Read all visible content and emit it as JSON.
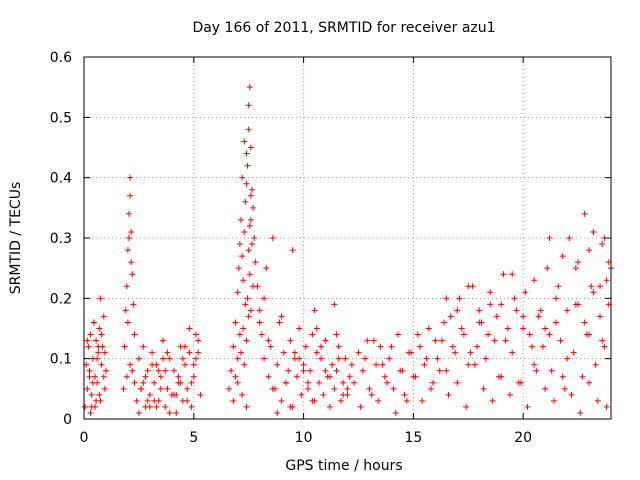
{
  "chart_data": {
    "type": "scatter",
    "title": "Day 166 of 2011, SRMTID for receiver azu1",
    "xlabel": "GPS time / hours",
    "ylabel": "SRMTID / TECUs",
    "xlim": [
      0,
      24
    ],
    "ylim": [
      0,
      0.6
    ],
    "xticks": [
      0,
      5,
      10,
      15,
      20
    ],
    "yticks": [
      0,
      0.1,
      0.2,
      0.3,
      0.4,
      0.5,
      0.6
    ],
    "xtick_labels": [
      "0",
      "5",
      "10",
      "15",
      "20"
    ],
    "ytick_labels": [
      "0",
      "0.1",
      "0.2",
      "0.3",
      "0.4",
      "0.5",
      "0.6"
    ],
    "grid": true,
    "marker": "+",
    "marker_color": "#ff0000",
    "series": [
      {
        "name": "SRMTID",
        "x": [
          0.05,
          0.1,
          0.15,
          0.2,
          0.25,
          0.3,
          0.35,
          0.4,
          0.45,
          0.5,
          0.55,
          0.6,
          0.65,
          0.7,
          0.75,
          0.8,
          0.85,
          0.9,
          0.95,
          1.0,
          0.3,
          0.4,
          0.5,
          0.6,
          0.7,
          0.8,
          0.9,
          0.45,
          0.55,
          0.65,
          0.95,
          0.15,
          0.25,
          0.35,
          0.75,
          1.8,
          1.85,
          1.9,
          1.95,
          2.0,
          2.05,
          2.1,
          2.15,
          2.2,
          2.25,
          2.3,
          2.1,
          2.05,
          2.15,
          2.0,
          2.1,
          2.2,
          1.95,
          2.3,
          2.4,
          2.5,
          2.6,
          2.7,
          2.8,
          2.9,
          3.0,
          3.1,
          3.2,
          3.3,
          3.4,
          3.5,
          3.6,
          3.7,
          3.8,
          3.9,
          4.0,
          4.1,
          4.2,
          4.3,
          4.4,
          4.5,
          4.6,
          4.7,
          4.8,
          4.9,
          5.0,
          5.1,
          5.2,
          5.3,
          2.5,
          2.7,
          2.9,
          3.1,
          3.3,
          3.5,
          3.7,
          3.9,
          4.1,
          4.3,
          4.5,
          4.7,
          4.9,
          5.1,
          2.6,
          3.0,
          3.4,
          3.8,
          4.2,
          4.6,
          5.0,
          2.8,
          3.2,
          3.6,
          4.4,
          4.8,
          5.2,
          6.6,
          6.7,
          6.8,
          6.9,
          7.0,
          7.05,
          7.1,
          7.15,
          7.2,
          7.25,
          7.3,
          7.35,
          7.4,
          7.45,
          7.5,
          7.55,
          7.6,
          7.65,
          7.7,
          7.75,
          7.8,
          7.2,
          7.3,
          7.4,
          7.5,
          7.6,
          7.5,
          7.55,
          7.45,
          7.6,
          7.7,
          7.0,
          7.1,
          7.3,
          7.4,
          7.5,
          7.6,
          7.55,
          7.65,
          7.35,
          7.25,
          7.15,
          6.9,
          6.8,
          7.0,
          7.2,
          7.4,
          7.9,
          8.0,
          8.1,
          8.2,
          8.3,
          8.4,
          8.5,
          8.6,
          8.7,
          8.8,
          8.9,
          9.0,
          9.1,
          9.2,
          9.3,
          9.4,
          9.5,
          9.6,
          9.7,
          9.8,
          9.9,
          10.0,
          10.1,
          10.2,
          10.3,
          10.4,
          10.5,
          10.6,
          10.7,
          10.8,
          10.9,
          11.0,
          11.1,
          11.2,
          11.3,
          11.4,
          11.5,
          11.6,
          11.7,
          11.8,
          11.9,
          12.0,
          12.1,
          12.2,
          8.2,
          8.6,
          9.0,
          9.4,
          9.8,
          10.2,
          10.6,
          11.0,
          11.4,
          11.8,
          8.4,
          8.8,
          9.2,
          9.6,
          10.0,
          10.4,
          10.8,
          11.2,
          11.6,
          12.0,
          8.0,
          9.5,
          10.5,
          11.5,
          12.3,
          12.5,
          12.7,
          12.9,
          13.1,
          13.3,
          13.5,
          13.7,
          13.9,
          14.1,
          14.3,
          14.5,
          14.7,
          14.9,
          15.1,
          15.3,
          15.5,
          15.7,
          15.9,
          16.1,
          16.3,
          16.5,
          16.7,
          16.9,
          17.1,
          17.3,
          17.5,
          17.7,
          17.9,
          18.1,
          18.3,
          18.5,
          18.7,
          18.9,
          19.1,
          19.3,
          19.5,
          19.7,
          19.9,
          20.1,
          20.3,
          20.5,
          20.7,
          20.9,
          21.1,
          21.3,
          21.5,
          21.7,
          21.9,
          22.1,
          22.3,
          22.5,
          22.7,
          22.9,
          23.1,
          23.3,
          23.5,
          23.7,
          23.9,
          12.6,
          13.0,
          13.4,
          13.8,
          14.2,
          14.6,
          15.0,
          15.4,
          15.8,
          16.2,
          16.6,
          17.0,
          17.4,
          17.8,
          18.2,
          18.6,
          19.0,
          19.4,
          19.8,
          20.2,
          20.6,
          21.0,
          21.4,
          21.8,
          22.2,
          22.6,
          23.0,
          23.4,
          23.8,
          12.8,
          13.2,
          13.6,
          14.0,
          14.4,
          14.8,
          15.2,
          15.6,
          16.0,
          16.4,
          16.8,
          17.2,
          17.6,
          18.0,
          18.4,
          18.8,
          19.2,
          19.6,
          20.0,
          20.4,
          20.8,
          21.2,
          21.6,
          22.0,
          22.4,
          22.8,
          23.2,
          23.6,
          24.0,
          16.5,
          17.0,
          17.5,
          18.0,
          18.5,
          19.0,
          19.5,
          20.0,
          20.5,
          21.0,
          21.5,
          22.0,
          22.5,
          23.0,
          23.5,
          23.9,
          21.2,
          21.8,
          22.4,
          23.0,
          23.6,
          22.8,
          23.2,
          23.8,
          23.7
        ],
        "y": [
          0.02,
          0.09,
          0.05,
          0.12,
          0.08,
          0.14,
          0.04,
          0.1,
          0.16,
          0.07,
          0.13,
          0.06,
          0.11,
          0.15,
          0.03,
          0.09,
          0.12,
          0.17,
          0.05,
          0.08,
          0.01,
          0.06,
          0.02,
          0.1,
          0.04,
          0.14,
          0.07,
          0.16,
          0.03,
          0.12,
          0.11,
          0.13,
          0.07,
          0.02,
          0.2,
          0.05,
          0.12,
          0.18,
          0.22,
          0.28,
          0.34,
          0.4,
          0.31,
          0.24,
          0.19,
          0.14,
          0.37,
          0.3,
          0.26,
          0.16,
          0.09,
          0.08,
          0.07,
          0.06,
          0.03,
          0.1,
          0.05,
          0.12,
          0.02,
          0.08,
          0.04,
          0.11,
          0.06,
          0.09,
          0.03,
          0.07,
          0.13,
          0.02,
          0.05,
          0.1,
          0.04,
          0.08,
          0.01,
          0.06,
          0.12,
          0.03,
          0.09,
          0.05,
          0.11,
          0.02,
          0.07,
          0.1,
          0.13,
          0.04,
          0.01,
          0.06,
          0.03,
          0.09,
          0.02,
          0.05,
          0.08,
          0.01,
          0.04,
          0.07,
          0.1,
          0.03,
          0.06,
          0.14,
          0.05,
          0.02,
          0.08,
          0.11,
          0.04,
          0.12,
          0.09,
          0.07,
          0.03,
          0.1,
          0.06,
          0.15,
          0.11,
          0.05,
          0.08,
          0.12,
          0.16,
          0.21,
          0.25,
          0.29,
          0.33,
          0.27,
          0.23,
          0.31,
          0.36,
          0.39,
          0.42,
          0.48,
          0.55,
          0.45,
          0.38,
          0.35,
          0.3,
          0.26,
          0.4,
          0.46,
          0.44,
          0.52,
          0.33,
          0.28,
          0.24,
          0.2,
          0.18,
          0.22,
          0.1,
          0.14,
          0.09,
          0.13,
          0.17,
          0.37,
          0.32,
          0.29,
          0.19,
          0.15,
          0.11,
          0.07,
          0.03,
          0.06,
          0.04,
          0.02,
          0.22,
          0.18,
          0.14,
          0.1,
          0.25,
          0.07,
          0.12,
          0.3,
          0.05,
          0.09,
          0.16,
          0.03,
          0.11,
          0.06,
          0.08,
          0.13,
          0.02,
          0.1,
          0.07,
          0.15,
          0.04,
          0.09,
          0.12,
          0.05,
          0.08,
          0.14,
          0.03,
          0.11,
          0.06,
          0.1,
          0.04,
          0.13,
          0.07,
          0.02,
          0.09,
          0.05,
          0.08,
          0.12,
          0.03,
          0.06,
          0.1,
          0.04,
          0.07,
          0.09,
          0.2,
          0.05,
          0.17,
          0.02,
          0.1,
          0.06,
          0.15,
          0.08,
          0.19,
          0.04,
          0.13,
          0.01,
          0.06,
          0.11,
          0.08,
          0.03,
          0.12,
          0.07,
          0.1,
          0.05,
          0.16,
          0.28,
          0.18,
          0.14,
          0.06,
          0.11,
          0.08,
          0.13,
          0.04,
          0.09,
          0.12,
          0.07,
          0.1,
          0.05,
          0.14,
          0.08,
          0.03,
          0.11,
          0.07,
          0.12,
          0.09,
          0.15,
          0.06,
          0.1,
          0.13,
          0.08,
          0.17,
          0.11,
          0.2,
          0.14,
          0.09,
          0.22,
          0.12,
          0.16,
          0.1,
          0.19,
          0.13,
          0.07,
          0.24,
          0.15,
          0.11,
          0.18,
          0.06,
          0.21,
          0.14,
          0.09,
          0.17,
          0.12,
          0.25,
          0.08,
          0.16,
          0.13,
          0.05,
          0.3,
          0.11,
          0.19,
          0.07,
          0.14,
          0.22,
          0.09,
          0.17,
          0.12,
          0.26,
          0.02,
          0.05,
          0.03,
          0.06,
          0.01,
          0.04,
          0.07,
          0.03,
          0.05,
          0.08,
          0.04,
          0.06,
          0.02,
          0.09,
          0.05,
          0.03,
          0.07,
          0.04,
          0.06,
          0.02,
          0.08,
          0.05,
          0.03,
          0.07,
          0.04,
          0.01,
          0.06,
          0.03,
          0.02,
          0.1,
          0.13,
          0.09,
          0.12,
          0.08,
          0.11,
          0.14,
          0.1,
          0.13,
          0.16,
          0.12,
          0.15,
          0.11,
          0.18,
          0.14,
          0.17,
          0.13,
          0.2,
          0.15,
          0.12,
          0.18,
          0.14,
          0.22,
          0.1,
          0.19,
          0.16,
          0.21,
          0.13,
          0.25,
          0.2,
          0.18,
          0.22,
          0.16,
          0.21,
          0.19,
          0.24,
          0.17,
          0.23,
          0.15,
          0.2,
          0.18,
          0.26,
          0.14,
          0.22,
          0.19,
          0.3,
          0.27,
          0.25,
          0.28,
          0.29,
          0.34,
          0.31,
          0.23,
          0.3
        ]
      }
    ]
  }
}
